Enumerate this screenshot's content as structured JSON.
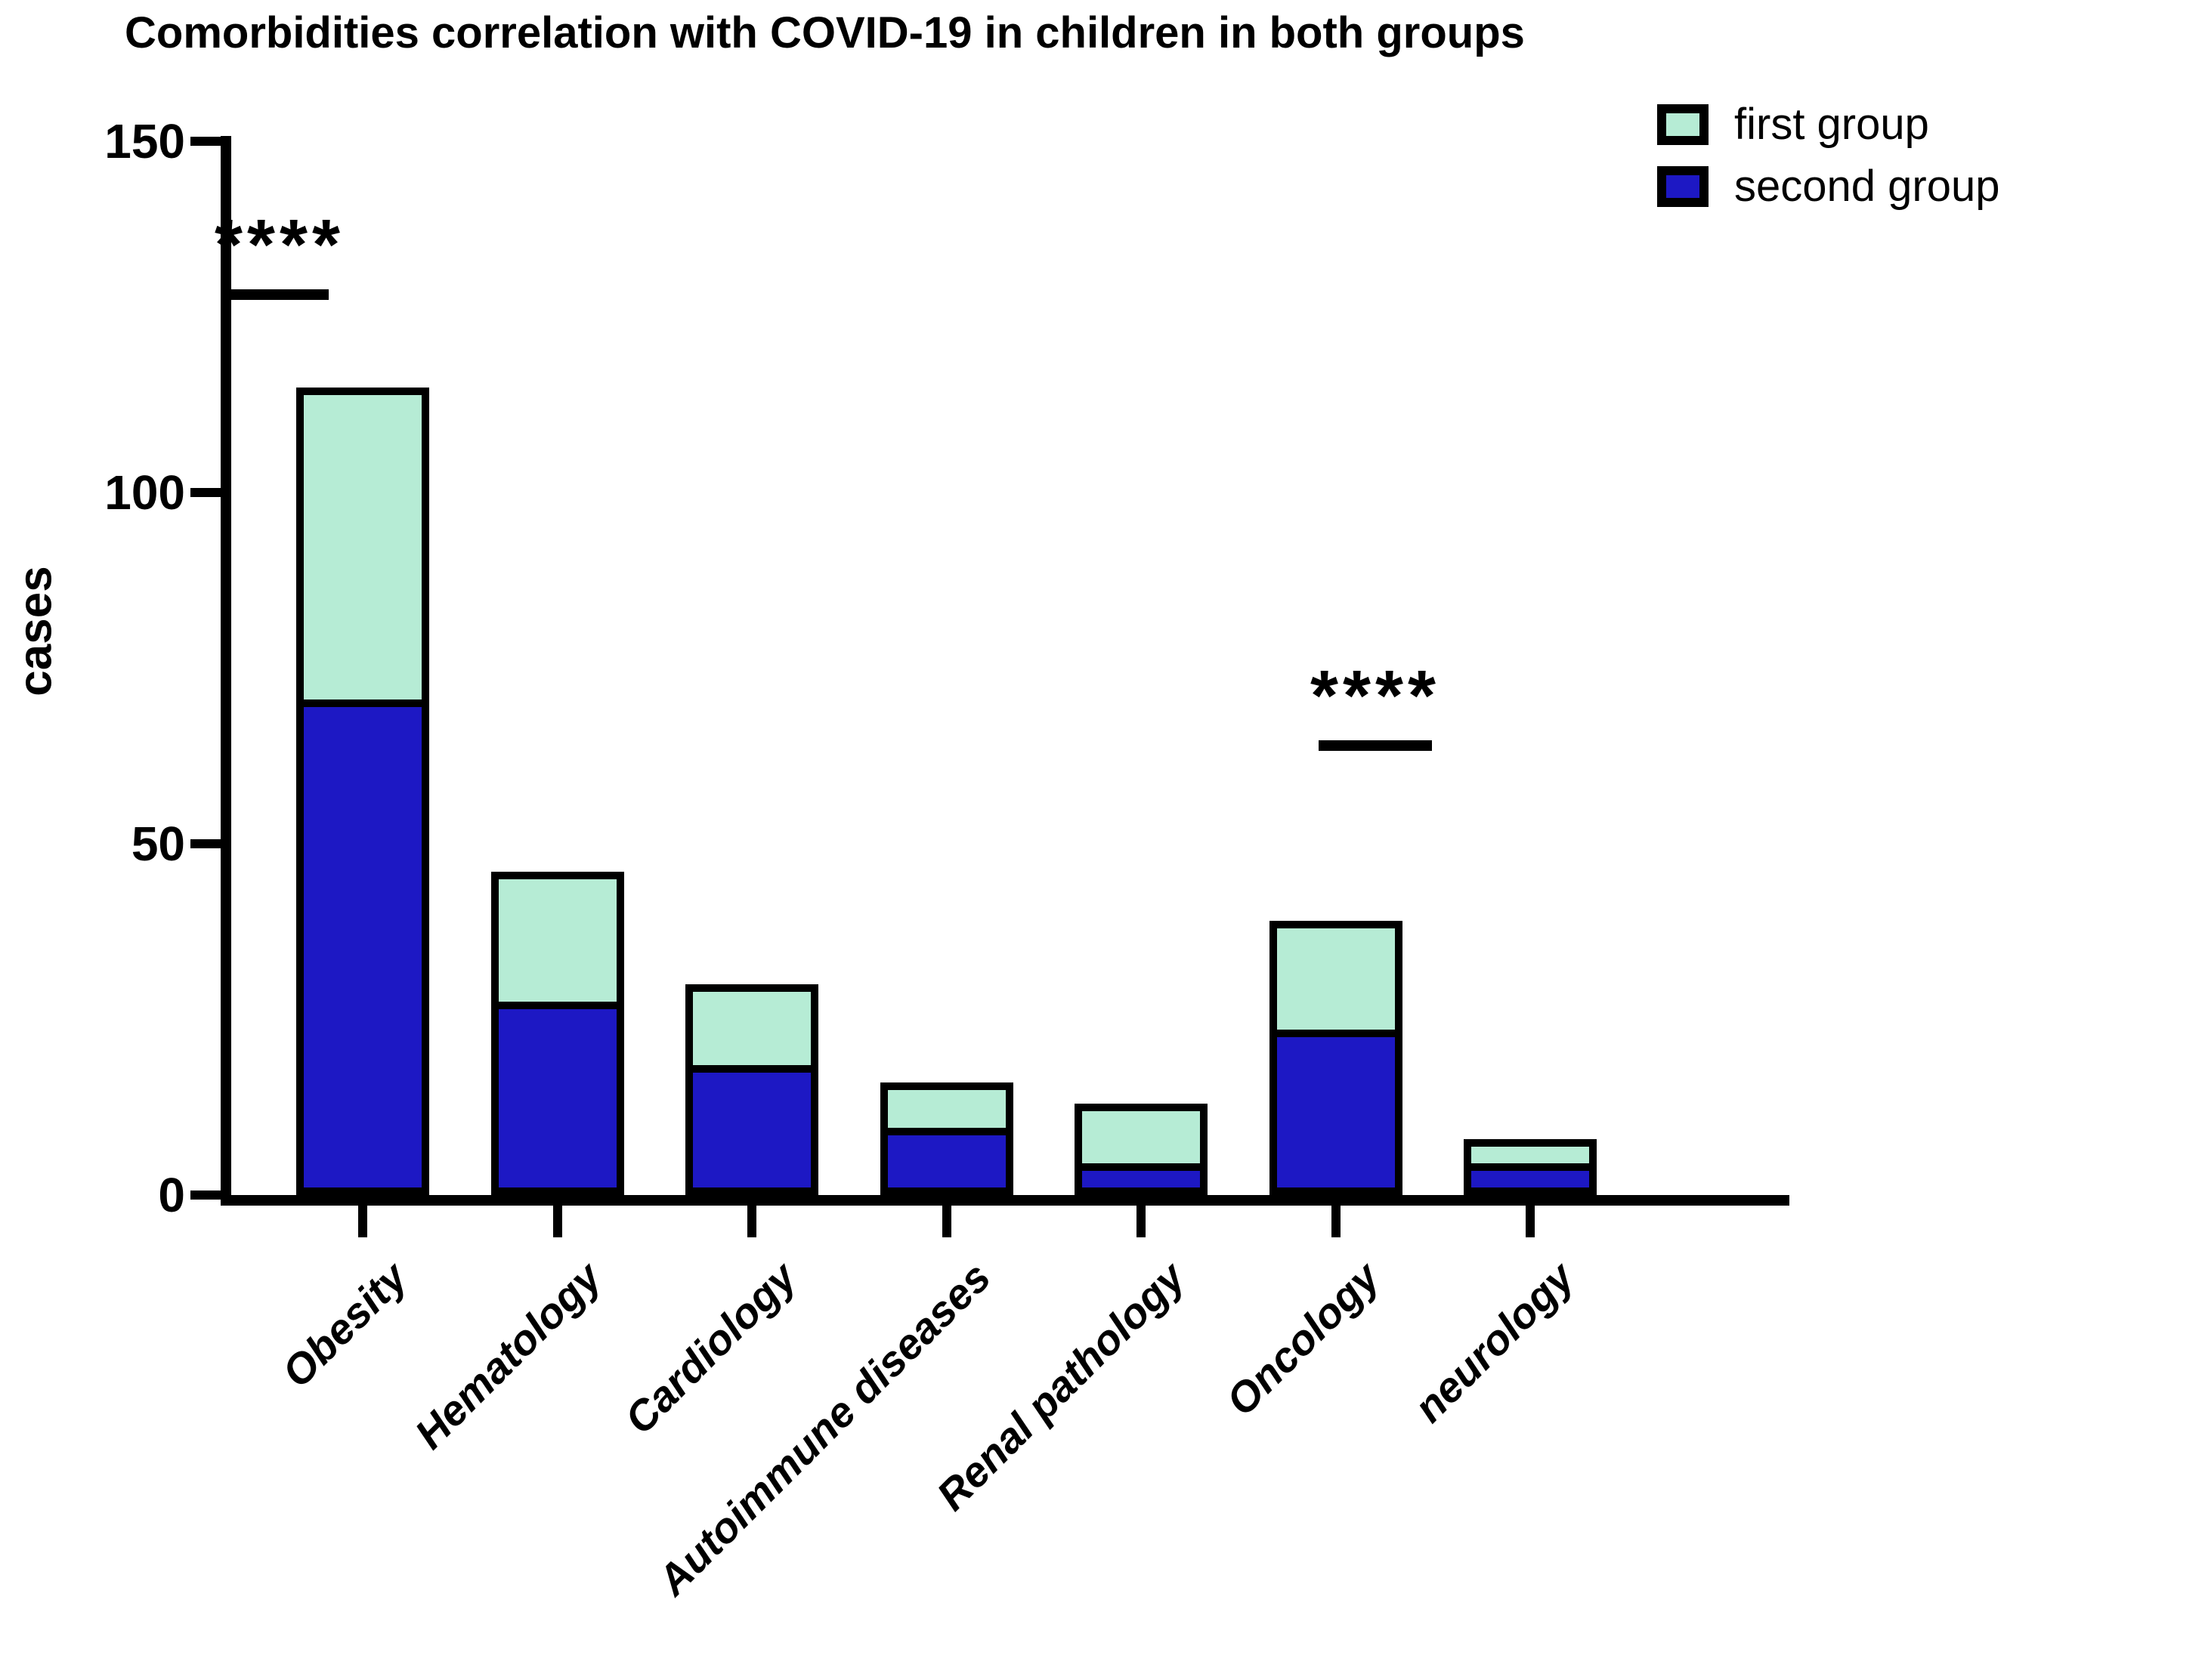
{
  "title": "Comorbidities correlation with COVID-19 in children in both groups",
  "legend": {
    "items": [
      {
        "label": "first group",
        "color": "#b6ecd5"
      },
      {
        "label": "second group",
        "color": "#1d18c4"
      }
    ]
  },
  "chart_data": {
    "type": "bar",
    "stacked": true,
    "title": "Comorbidities correlation with COVID-19 in children in both groups",
    "xlabel": "",
    "ylabel": "cases",
    "categories": [
      "Obesity",
      "Hematology",
      "Cardiology",
      "Autoimmune diseases",
      "Renal pathology",
      "Oncology",
      "neurology"
    ],
    "series": [
      {
        "name": "second group",
        "color": "#1d18c4",
        "values": [
          70,
          27,
          18,
          9,
          4,
          23,
          4
        ]
      },
      {
        "name": "first group",
        "color": "#b6ecd5",
        "values": [
          45,
          19,
          12,
          7,
          9,
          16,
          4
        ]
      }
    ],
    "totals": [
      115,
      46,
      30,
      16,
      13,
      39,
      8
    ],
    "yticks": [
      0,
      50,
      100,
      150
    ],
    "ylim": [
      0,
      150
    ],
    "grid": false,
    "legend_position": "top-right",
    "bar_outline_color": "#000000",
    "significance": [
      {
        "category": "Obesity",
        "marker": "****"
      },
      {
        "category": "Oncology",
        "marker": "****"
      }
    ]
  }
}
